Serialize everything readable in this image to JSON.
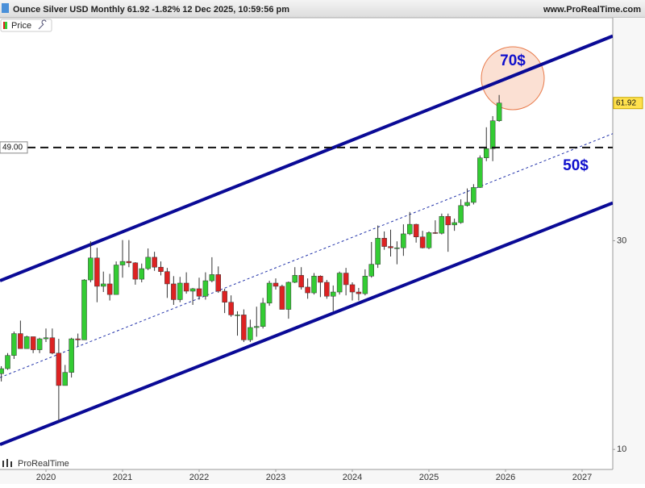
{
  "chart_data": {
    "type": "candlestick",
    "title": "Ounce Silver USD Monthly 61.92 -1.82% 12 Dec 2025, 10:59:56 pm",
    "source": "www.ProRealTime.com",
    "legend_label": "Price",
    "watermark": "ProRealTime",
    "log_scale": true,
    "up_color": "#33cc33",
    "down_color": "#dd2222",
    "x": [
      2019.417,
      2019.5,
      2019.583,
      2019.667,
      2019.75,
      2019.833,
      2019.917,
      2020,
      2020.083,
      2020.167,
      2020.25,
      2020.333,
      2020.417,
      2020.5,
      2020.583,
      2020.667,
      2020.75,
      2020.833,
      2020.917,
      2021,
      2021.083,
      2021.167,
      2021.25,
      2021.333,
      2021.417,
      2021.5,
      2021.583,
      2021.667,
      2021.75,
      2021.833,
      2021.917,
      2022,
      2022.083,
      2022.167,
      2022.25,
      2022.333,
      2022.417,
      2022.5,
      2022.583,
      2022.667,
      2022.75,
      2022.833,
      2022.917,
      2023,
      2023.083,
      2023.167,
      2023.25,
      2023.333,
      2023.417,
      2023.5,
      2023.583,
      2023.667,
      2023.75,
      2023.833,
      2023.917,
      2024,
      2024.083,
      2024.167,
      2024.25,
      2024.333,
      2024.417,
      2024.5,
      2024.583,
      2024.667,
      2024.75,
      2024.833,
      2024.917,
      2025,
      2025.083,
      2025.167,
      2025.25,
      2025.333,
      2025.417,
      2025.5,
      2025.583,
      2025.667,
      2025.75,
      2025.833,
      2025.917
    ],
    "open": [
      14.9,
      15.3,
      16.4,
      18.4,
      17.0,
      18.1,
      16.9,
      17.9,
      18.0,
      16.6,
      14.0,
      15.0,
      17.9,
      17.8,
      24.4,
      27.4,
      23.6,
      23.9,
      22.6,
      26.4,
      26.9,
      26.7,
      24.5,
      25.9,
      27.5,
      26.1,
      25.5,
      23.9,
      22.0,
      24.0,
      23.0,
      23.3,
      22.4,
      24.3,
      25.1,
      23.0,
      21.7,
      20.3,
      20.3,
      17.8,
      19.0,
      19.1,
      21.6,
      24.0,
      23.6,
      20.9,
      24.1,
      25.0,
      23.5,
      22.8,
      24.9,
      24.1,
      22.4,
      22.9,
      25.3,
      23.8,
      22.9,
      22.7,
      24.9,
      26.5,
      30.4,
      29.1,
      28.9,
      28.9,
      31.1,
      32.7,
      30.6,
      28.9,
      31.3,
      31.2,
      34.1,
      32.6,
      33.0,
      36.1,
      36.7,
      39.7,
      46.4,
      48.7,
      56.4
    ],
    "high": [
      15.5,
      16.6,
      18.6,
      19.7,
      18.2,
      18.1,
      18.0,
      18.9,
      18.9,
      17.9,
      15.6,
      18.0,
      18.4,
      24.5,
      29.9,
      28.9,
      25.5,
      25.2,
      26.9,
      30.1,
      30.1,
      26.8,
      26.6,
      28.8,
      28.3,
      26.9,
      26.0,
      24.9,
      24.8,
      25.4,
      23.4,
      24.7,
      25.4,
      27.5,
      26.2,
      23.3,
      22.5,
      20.7,
      20.9,
      19.8,
      21.2,
      22.2,
      24.3,
      24.6,
      23.8,
      24.2,
      26.1,
      26.1,
      24.6,
      25.3,
      25.0,
      24.4,
      23.7,
      25.5,
      26.0,
      24.1,
      23.4,
      25.8,
      29.8,
      32.5,
      31.5,
      31.8,
      29.9,
      32.7,
      34.9,
      32.8,
      31.6,
      31.5,
      33.4,
      34.6,
      34.6,
      33.7,
      37.3,
      39.5,
      40.4,
      47.0,
      54.5,
      57.8,
      64.6
    ],
    "low": [
      14.3,
      15.2,
      16.1,
      17.0,
      17.0,
      16.6,
      16.6,
      17.6,
      16.5,
      11.6,
      14.0,
      14.6,
      17.2,
      17.8,
      24.1,
      21.7,
      22.9,
      21.9,
      22.6,
      24.7,
      26.1,
      23.8,
      24.1,
      25.7,
      25.6,
      25.0,
      22.2,
      21.4,
      21.7,
      22.7,
      21.4,
      22.0,
      22.0,
      24.1,
      22.8,
      20.5,
      20.1,
      18.2,
      17.6,
      17.6,
      18.1,
      18.9,
      21.3,
      23.2,
      20.9,
      19.9,
      24.0,
      23.2,
      22.1,
      22.6,
      22.3,
      22.1,
      20.7,
      22.6,
      22.5,
      21.9,
      21.9,
      22.5,
      24.7,
      26.0,
      28.6,
      27.6,
      26.5,
      27.7,
      30.9,
      29.7,
      28.8,
      28.7,
      31.1,
      31.0,
      28.3,
      31.6,
      32.8,
      35.9,
      36.3,
      39.6,
      45.6,
      45.6,
      56.1
    ],
    "close": [
      15.3,
      16.4,
      18.4,
      17.0,
      18.1,
      16.9,
      17.9,
      18.0,
      16.6,
      14.0,
      15.0,
      17.9,
      17.8,
      24.4,
      27.4,
      23.6,
      23.9,
      22.6,
      26.4,
      26.9,
      26.7,
      24.5,
      25.9,
      27.5,
      26.1,
      25.5,
      23.9,
      22.0,
      24.0,
      23.0,
      23.3,
      22.4,
      24.3,
      25.1,
      23.0,
      21.7,
      20.3,
      20.3,
      17.8,
      19.0,
      19.1,
      21.6,
      24.0,
      23.6,
      20.9,
      24.1,
      25.0,
      23.5,
      22.8,
      24.9,
      24.1,
      22.4,
      22.9,
      25.3,
      23.8,
      22.9,
      22.7,
      24.9,
      26.5,
      30.4,
      29.1,
      28.9,
      28.9,
      31.1,
      32.7,
      30.6,
      28.9,
      31.3,
      31.2,
      34.1,
      32.6,
      33.0,
      36.1,
      36.7,
      39.7,
      46.4,
      48.7,
      56.4,
      61.92
    ],
    "xlim": [
      2019.4,
      2027.4
    ],
    "ylim": [
      9,
      97
    ],
    "xticks": [
      2020,
      2021,
      2022,
      2023,
      2024,
      2025,
      2026,
      2027
    ],
    "yticks": [
      10,
      30
    ],
    "last_price": {
      "value": 61.92,
      "label": "61.92"
    },
    "hline": {
      "value": 49,
      "label": "49.00"
    },
    "trendlines": [
      {
        "x": [
          2019.4,
          2027.4
        ],
        "y": [
          24.3,
          88.1
        ],
        "style": "solid"
      },
      {
        "x": [
          2019.4,
          2027.4
        ],
        "y": [
          10.26,
          36.6
        ],
        "style": "solid"
      },
      {
        "x": [
          2019.4,
          2027.4
        ],
        "y": [
          14.6,
          52.7
        ],
        "style": "dashed"
      }
    ],
    "annotations": [
      "70$",
      "50$"
    ]
  }
}
